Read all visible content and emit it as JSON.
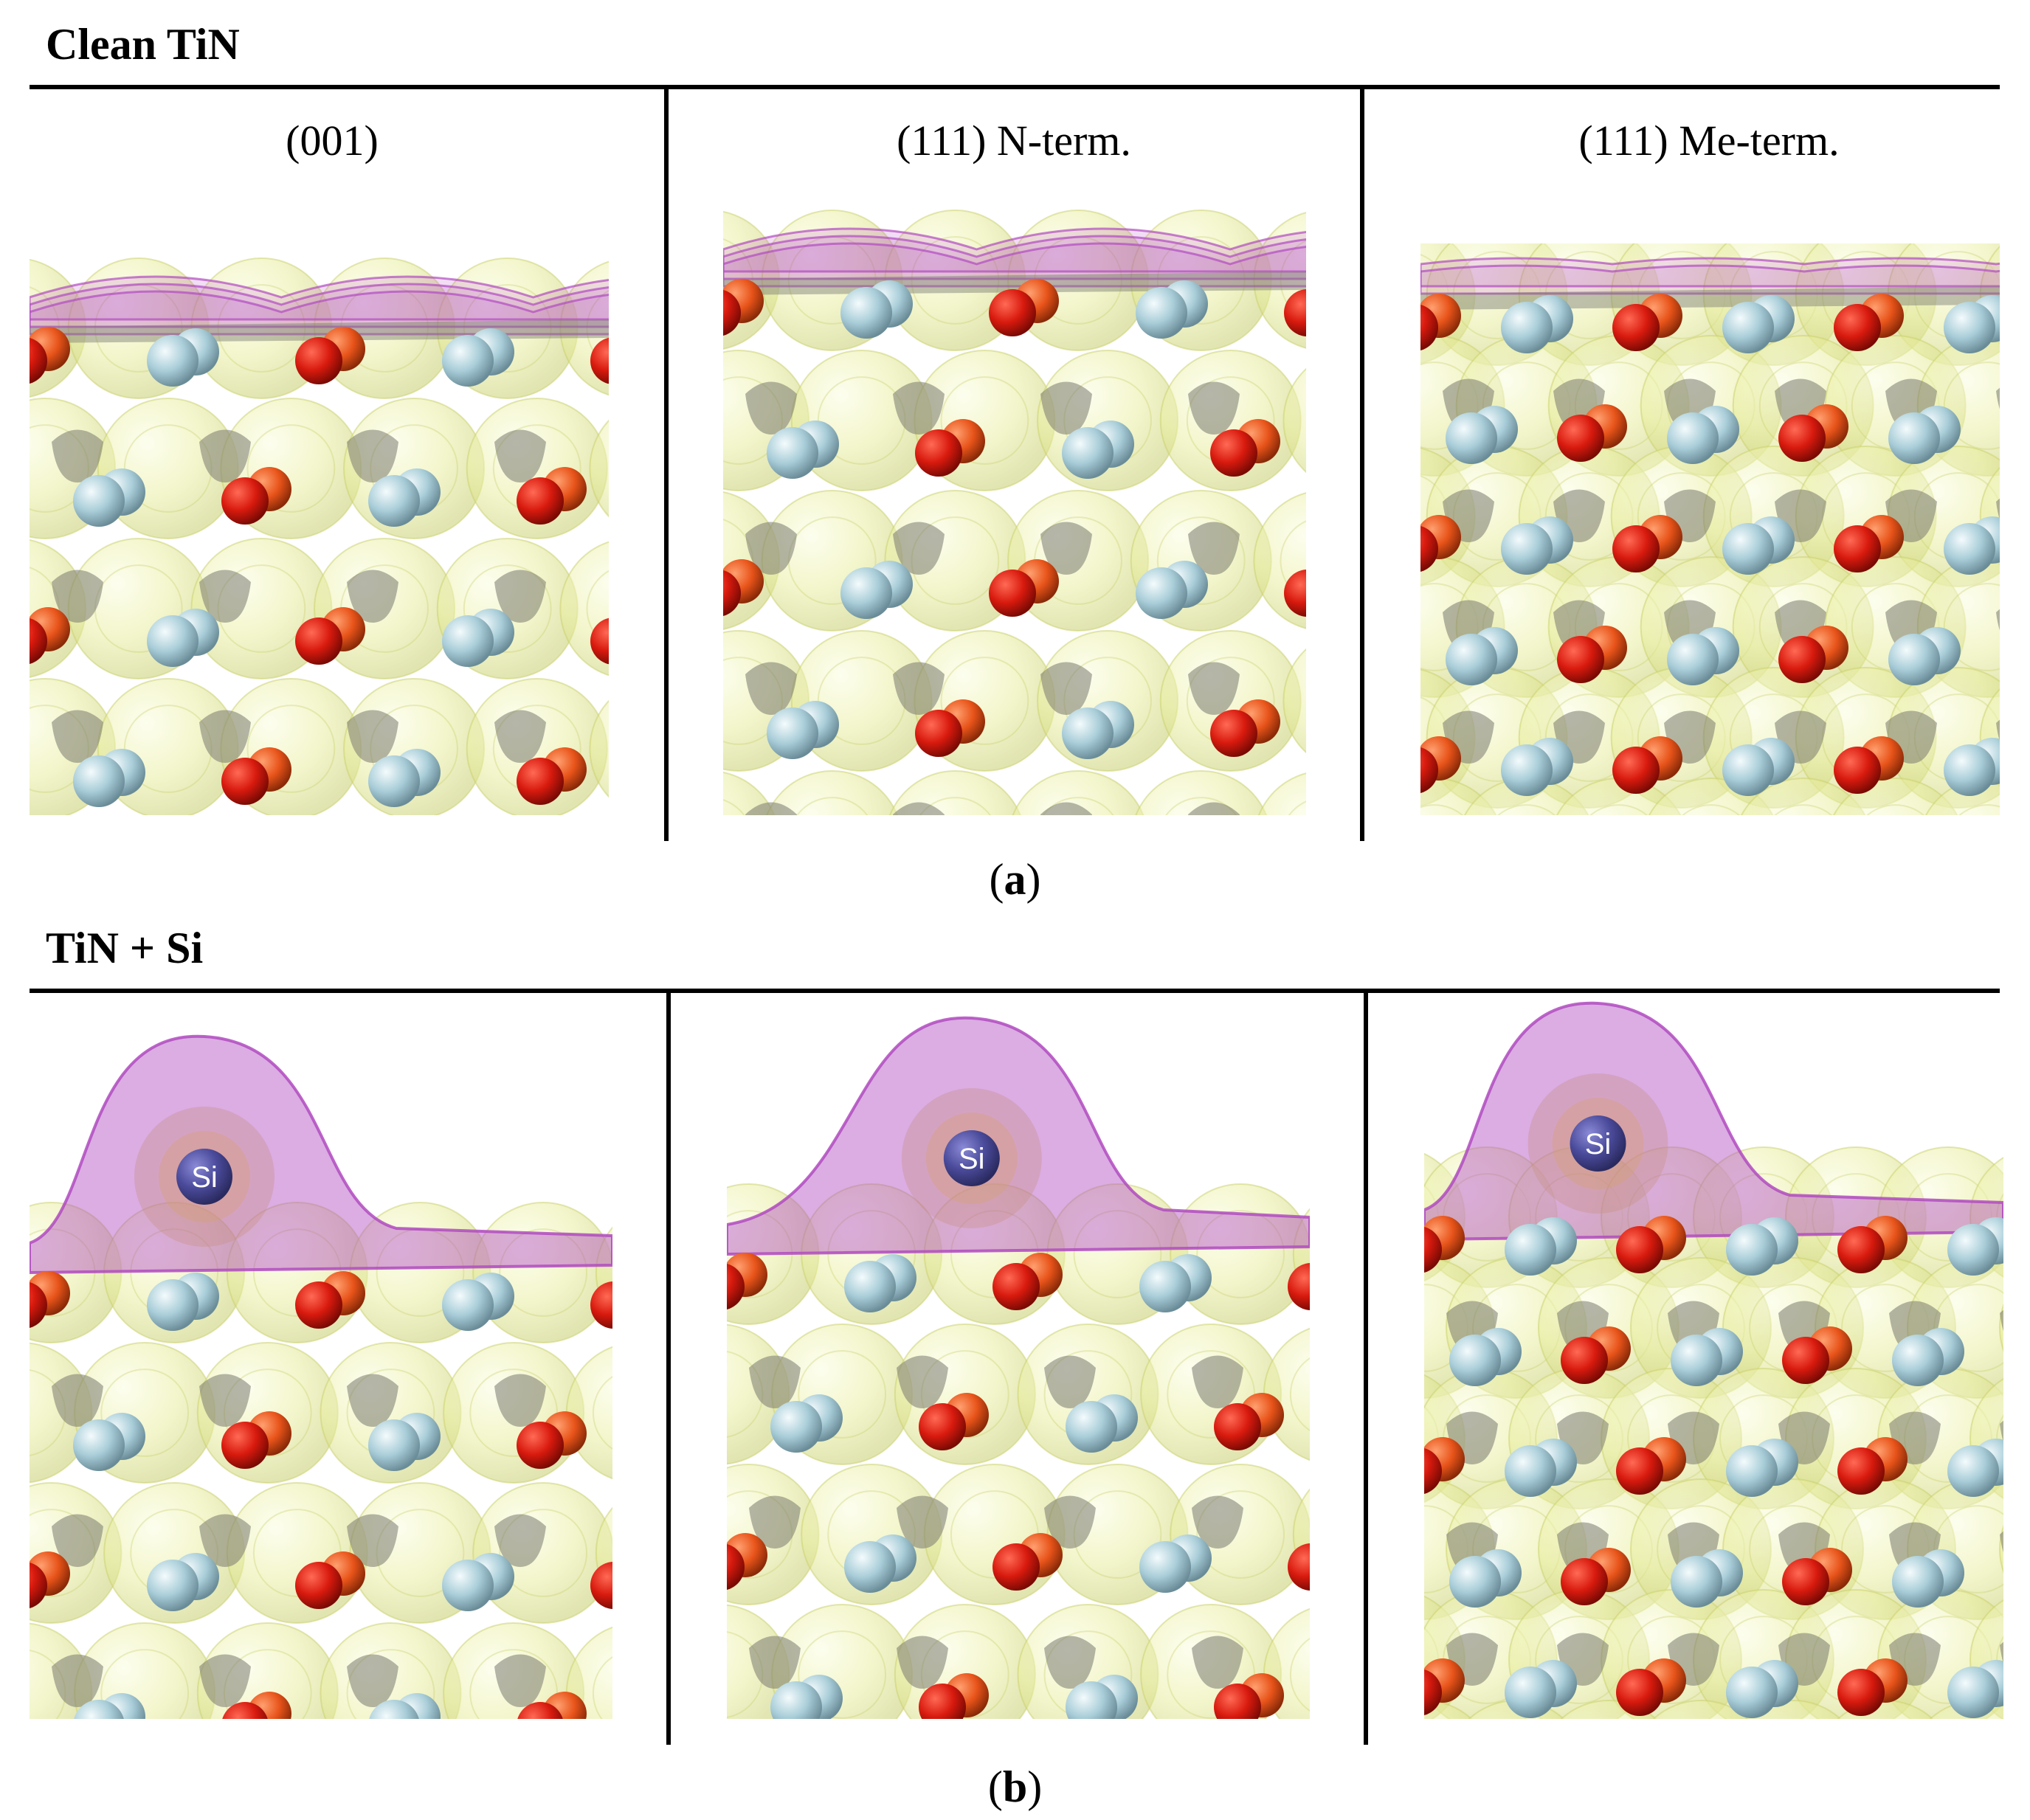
{
  "figure": {
    "sections": [
      {
        "title": "Clean TiN",
        "caption_letter": "a",
        "columns": [
          "(001)",
          "(111) N-term.",
          "(111) Me-term."
        ]
      },
      {
        "title": "TiN + Si",
        "caption_letter": "b",
        "columns": [
          "",
          "",
          ""
        ],
        "adatom_label": "Si"
      }
    ],
    "colors": {
      "isosurface_yellow": "#e9eea0",
      "isosurface_gray": "#7a7a70",
      "isosurface_magenta": "#b04ac0",
      "atom_red": "#d81a0e",
      "atom_orange": "#e8541a",
      "atom_lightblue": "#a8cdd8",
      "atom_si": "#4a4a9a"
    }
  }
}
